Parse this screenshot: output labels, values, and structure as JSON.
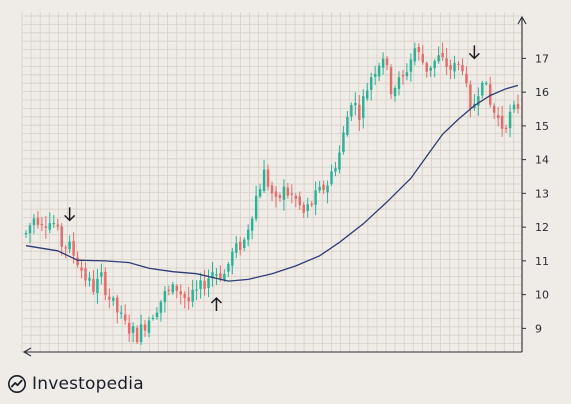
{
  "brand": {
    "name": "Investopedia"
  },
  "colors": {
    "background": "#efebe6",
    "grid": "#d8d0c8",
    "axis": "#2b2d36",
    "up_candle": "#2bb39a",
    "down_candle": "#e46d6a",
    "moving_average": "#2f3b74",
    "arrow": "#1b1c22",
    "brand_icon": "#1a1d2a"
  },
  "chart_data": {
    "type": "candlestick",
    "title": "",
    "xlabel": "",
    "ylabel": "",
    "y_axis_position": "right",
    "ylim": [
      8.3,
      17.9
    ],
    "yticks": [
      9,
      10,
      11,
      12,
      13,
      14,
      15,
      16,
      17
    ],
    "grid": true,
    "legend": "none",
    "candles": {
      "count": 125,
      "x_range": [
        0,
        124
      ],
      "price_path": [
        [
          0,
          11.8
        ],
        [
          2,
          12.3
        ],
        [
          7,
          12.1
        ],
        [
          9,
          11.5
        ],
        [
          11,
          11.4
        ],
        [
          13,
          11.0
        ],
        [
          15,
          10.5
        ],
        [
          17,
          10.2
        ],
        [
          19,
          10.5
        ],
        [
          21,
          9.9
        ],
        [
          25,
          9.1
        ],
        [
          28,
          8.8
        ],
        [
          31,
          9.3
        ],
        [
          35,
          10.0
        ],
        [
          38,
          10.2
        ],
        [
          41,
          9.8
        ],
        [
          44,
          10.2
        ],
        [
          47,
          10.7
        ],
        [
          50,
          10.6
        ],
        [
          52,
          11.2
        ],
        [
          55,
          11.6
        ],
        [
          58,
          12.9
        ],
        [
          60,
          13.6
        ],
        [
          63,
          12.7
        ],
        [
          65,
          13.1
        ],
        [
          68,
          12.8
        ],
        [
          70,
          12.4
        ],
        [
          73,
          12.9
        ],
        [
          76,
          13.3
        ],
        [
          79,
          14.2
        ],
        [
          82,
          15.8
        ],
        [
          84,
          15.4
        ],
        [
          87,
          16.5
        ],
        [
          90,
          17.1
        ],
        [
          92,
          16.1
        ],
        [
          95,
          16.4
        ],
        [
          98,
          17.3
        ],
        [
          101,
          16.7
        ],
        [
          104,
          17.0
        ],
        [
          107,
          16.7
        ],
        [
          110,
          16.8
        ],
        [
          112,
          15.3
        ],
        [
          115,
          16.5
        ],
        [
          117,
          15.6
        ],
        [
          120,
          15.0
        ],
        [
          124,
          15.6
        ]
      ]
    },
    "moving_average": {
      "points": [
        [
          0,
          11.45
        ],
        [
          8,
          11.3
        ],
        [
          13,
          11.02
        ],
        [
          20,
          11.0
        ],
        [
          26,
          10.95
        ],
        [
          31,
          10.78
        ],
        [
          37,
          10.68
        ],
        [
          43,
          10.62
        ],
        [
          48,
          10.48
        ],
        [
          51,
          10.4
        ],
        [
          56,
          10.45
        ],
        [
          62,
          10.62
        ],
        [
          68,
          10.85
        ],
        [
          74,
          11.15
        ],
        [
          79,
          11.55
        ],
        [
          85,
          12.1
        ],
        [
          91,
          12.75
        ],
        [
          97,
          13.45
        ],
        [
          101,
          14.1
        ],
        [
          105,
          14.75
        ],
        [
          109,
          15.2
        ],
        [
          113,
          15.6
        ],
        [
          117,
          15.9
        ],
        [
          121,
          16.1
        ],
        [
          124,
          16.2
        ]
      ]
    },
    "annotations": [
      {
        "type": "arrow",
        "direction": "down",
        "x": 11,
        "y": 12.2
      },
      {
        "type": "arrow",
        "direction": "up",
        "x": 48,
        "y": 9.9
      },
      {
        "type": "arrow",
        "direction": "down",
        "x": 113,
        "y": 17.0
      }
    ]
  }
}
